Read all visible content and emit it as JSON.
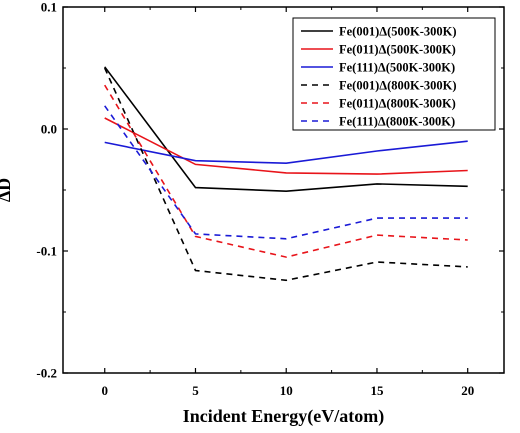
{
  "chart_data": {
    "type": "line",
    "xlabel": "Incident Energy(eV/atom)",
    "ylabel": "ΔD",
    "xlim": [
      -2.3,
      22
    ],
    "ylim": [
      -0.2,
      0.1
    ],
    "xticks": [
      0,
      5,
      10,
      15,
      20
    ],
    "xtick_labels": [
      "0",
      "5",
      "10",
      "15",
      "20"
    ],
    "yticks": [
      0.1,
      0.0,
      -0.1,
      -0.2
    ],
    "ytick_labels": [
      "0.1",
      "0.0",
      "-0.1",
      "-0.2"
    ],
    "grid": false,
    "legend_position": "top-right",
    "x": [
      0,
      5,
      10,
      15,
      20
    ],
    "series": [
      {
        "name": "Fe(001)Δ(500K-300K)",
        "color": "#000000",
        "dash": "solid",
        "values": [
          0.051,
          -0.048,
          -0.051,
          -0.045,
          -0.047
        ]
      },
      {
        "name": "Fe(011)Δ(500K-300K)",
        "color": "#e8141a",
        "dash": "solid",
        "values": [
          0.009,
          -0.029,
          -0.036,
          -0.037,
          -0.034
        ]
      },
      {
        "name": "Fe(111)Δ(500K-300K)",
        "color": "#1a1ad6",
        "dash": "solid",
        "values": [
          -0.011,
          -0.026,
          -0.028,
          -0.018,
          -0.01
        ]
      },
      {
        "name": "Fe(001)Δ(800K-300K)",
        "color": "#000000",
        "dash": "dashed",
        "values": [
          0.05,
          -0.116,
          -0.124,
          -0.109,
          -0.113
        ]
      },
      {
        "name": "Fe(011)Δ(800K-300K)",
        "color": "#e8141a",
        "dash": "dashed",
        "values": [
          0.036,
          -0.088,
          -0.105,
          -0.087,
          -0.091
        ]
      },
      {
        "name": "Fe(111)Δ(800K-300K)",
        "color": "#1a1ad6",
        "dash": "dashed",
        "values": [
          0.019,
          -0.086,
          -0.09,
          -0.073,
          -0.073
        ]
      }
    ]
  }
}
